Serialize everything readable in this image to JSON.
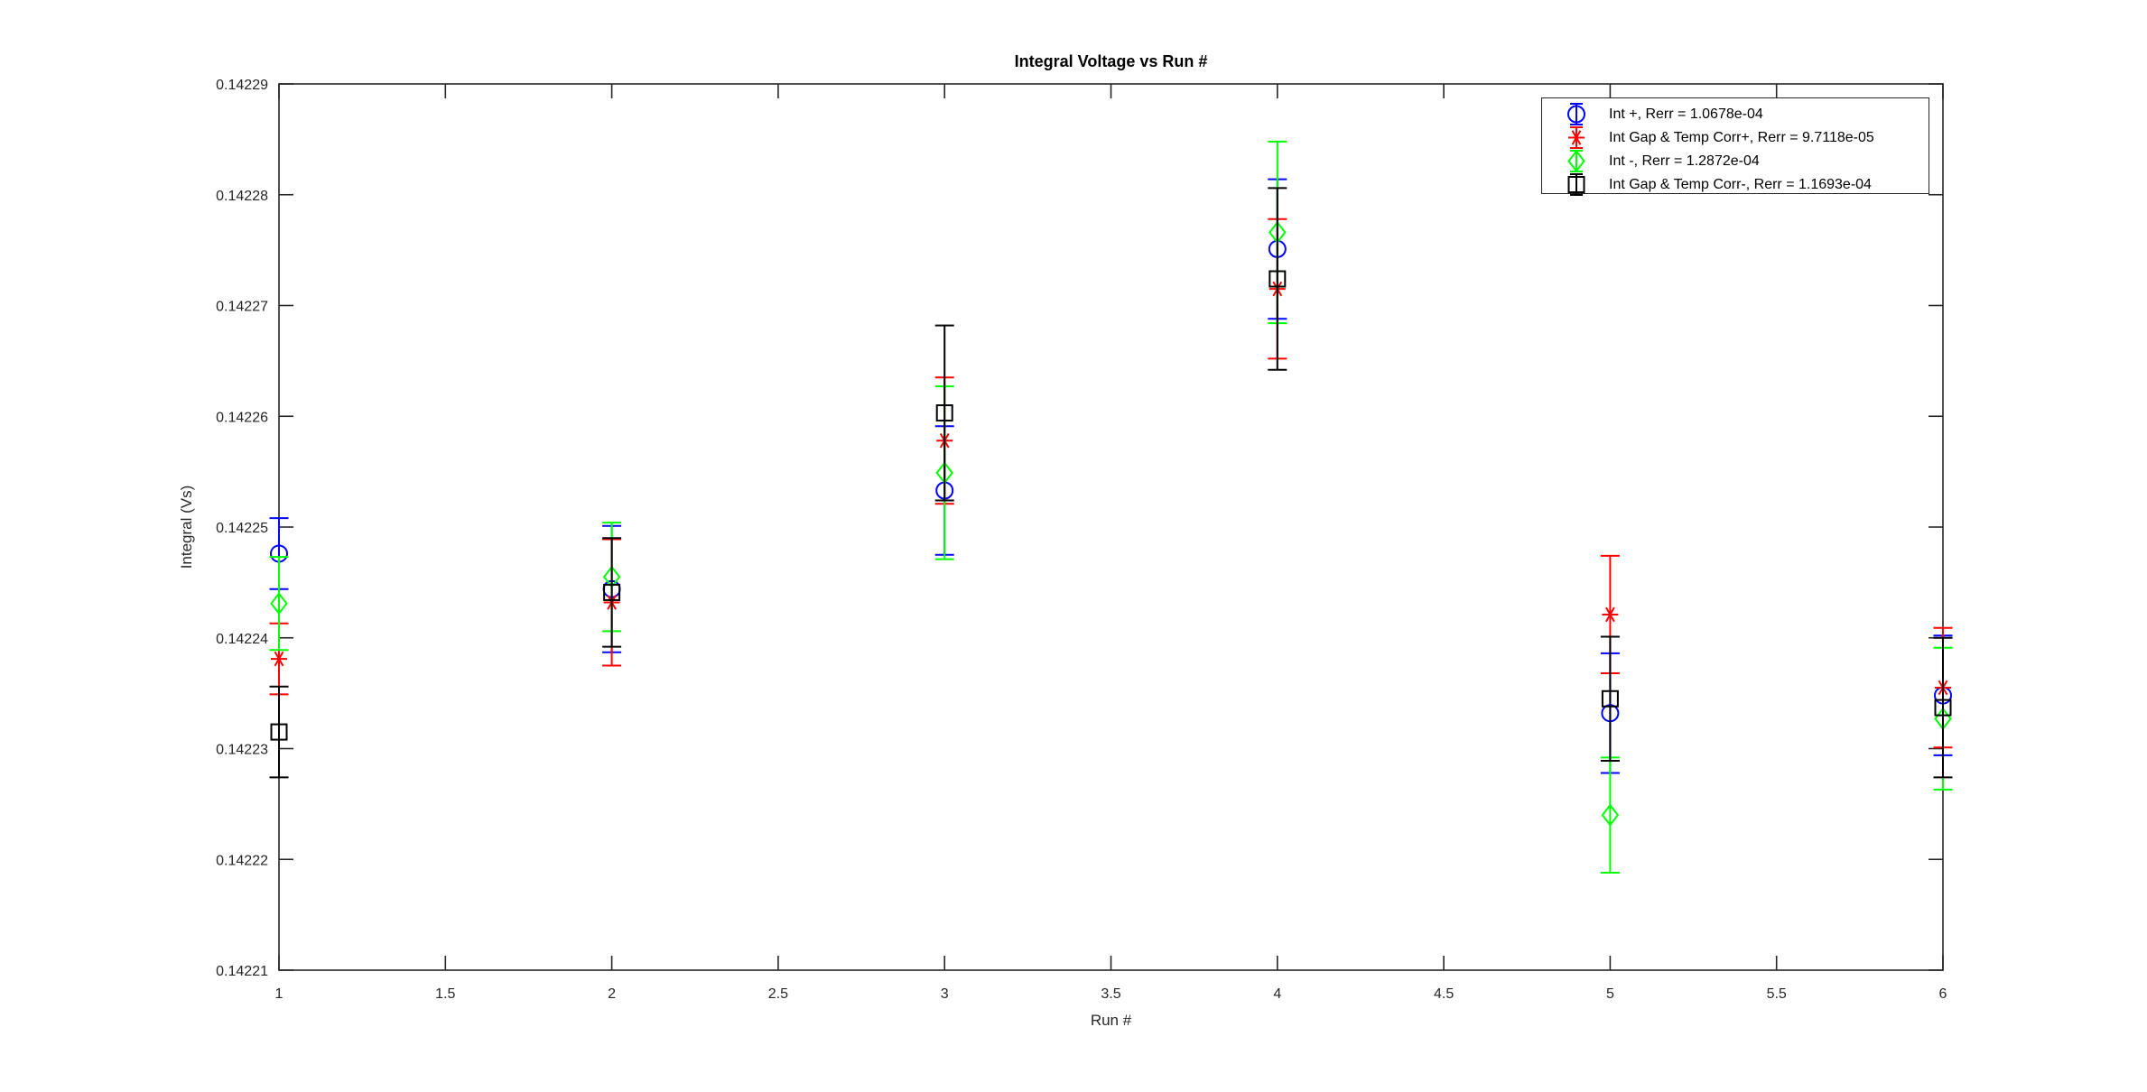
{
  "window": {
    "background": "#ffffff"
  },
  "chart_data": {
    "type": "scatter",
    "subtype": "errorbar",
    "title": "Integral Voltage vs Run #",
    "xlabel": "Run #",
    "ylabel": "Integral (Vs)",
    "xlim": [
      1,
      6
    ],
    "ylim": [
      0.14221,
      0.14229
    ],
    "grid": false,
    "x_tick_labels": [
      "1",
      "1.5",
      "2",
      "2.5",
      "3",
      "3.5",
      "4",
      "4.5",
      "5",
      "5.5",
      "6"
    ],
    "y_tick_labels": [
      "0.14221",
      "0.14222",
      "0.14223",
      "0.14224",
      "0.14225",
      "0.14226",
      "0.14227",
      "0.14228",
      "0.14229"
    ],
    "x": [
      1,
      2,
      3,
      4,
      5,
      6
    ],
    "series": [
      {
        "name": "int-plus",
        "legend_label": "Int +, Rerr = 1.0678e-04",
        "color": "#0000ff",
        "marker": "circle",
        "values": [
          0.1422476,
          0.1422444,
          0.1422533,
          0.1422751,
          0.1422332,
          0.1422348
        ],
        "errors": [
          3.2e-06,
          5.7e-06,
          5.8e-06,
          6.3e-06,
          5.4e-06,
          5.4e-06
        ]
      },
      {
        "name": "int-gap-temp-corr-plus",
        "legend_label": "Int Gap & Temp Corr+, Rerr = 9.7118e-05",
        "color": "#ff0000",
        "marker": "asterisk",
        "values": [
          0.1422381,
          0.1422432,
          0.1422578,
          0.1422715,
          0.1422421,
          0.1422355
        ],
        "errors": [
          3.2e-06,
          5.7e-06,
          5.7e-06,
          6.3e-06,
          5.3e-06,
          5.4e-06
        ]
      },
      {
        "name": "int-minus",
        "legend_label": "Int -, Rerr = 1.2872e-04",
        "color": "#00ff00",
        "marker": "diamond",
        "values": [
          0.1422431,
          0.1422455,
          0.1422549,
          0.1422766,
          0.142224,
          0.1422327
        ],
        "errors": [
          4.2e-06,
          4.9e-06,
          7.8e-06,
          8.2e-06,
          5.2e-06,
          6.4e-06
        ]
      },
      {
        "name": "int-gap-temp-corr-minus",
        "legend_label": "Int Gap & Temp Corr-, Rerr = 1.1693e-04",
        "color": "#000000",
        "marker": "square",
        "values": [
          0.1422315,
          0.1422441,
          0.1422603,
          0.1422724,
          0.1422345,
          0.1422337
        ],
        "errors": [
          4.1e-06,
          4.9e-06,
          7.9e-06,
          8.2e-06,
          5.6e-06,
          6.3e-06
        ]
      }
    ],
    "legend_position": "top-right",
    "axis_text_color": "#262626"
  }
}
